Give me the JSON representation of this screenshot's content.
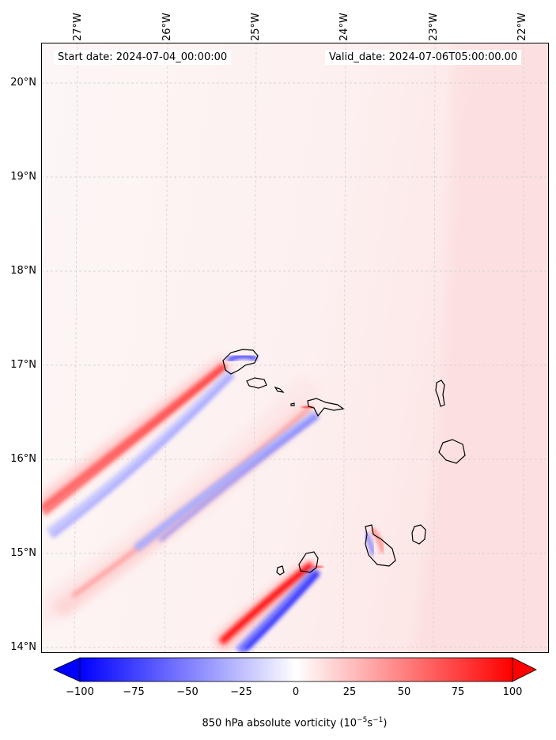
{
  "map": {
    "start_date": "Start date: 2024-07-04_00:00:00",
    "valid_date": "Valid_date: 2024-07-06T05:00:00.00",
    "lon_labels": [
      "27°W",
      "26°W",
      "25°W",
      "24°W",
      "23°W",
      "22°W"
    ],
    "lat_labels": [
      "20°N",
      "19°N",
      "18°N",
      "17°N",
      "16°N",
      "15°N",
      "14°N"
    ]
  },
  "colorbar": {
    "ticks": [
      "−100",
      "−75",
      "−50",
      "−25",
      "0",
      "25",
      "50",
      "75",
      "100"
    ],
    "label": "850 hPa absolute vorticity (10",
    "label_exp1": "−5",
    "label_mid": "s",
    "label_exp2": "−1",
    "label_end": ")",
    "colors": {
      "neg": "#0000ff",
      "mid": "#ffffff",
      "pos": "#ff0000"
    }
  }
}
